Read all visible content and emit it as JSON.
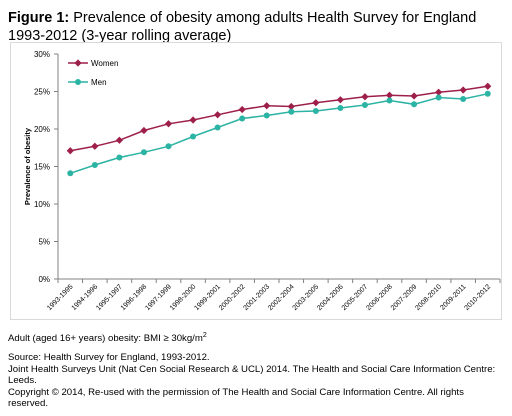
{
  "figure": {
    "label": "Figure 1:",
    "title": "Prevalence of obesity among adults Health Survey for England 1993-2012 (3-year rolling average)"
  },
  "chart_data": {
    "type": "line",
    "ylabel": "Prevalence of obesity",
    "ylim": [
      0,
      30
    ],
    "yticks": [
      "0%",
      "5%",
      "10%",
      "15%",
      "20%",
      "25%",
      "30%"
    ],
    "grid": false,
    "legend_position": "top-left",
    "categories": [
      "1993-1995",
      "1994-1996",
      "1995-1997",
      "1996-1998",
      "1997-1999",
      "1998-2000",
      "1999-2001",
      "2000-2002",
      "2001-2003",
      "2002-2004",
      "2003-2005",
      "2004-2006",
      "2005-2007",
      "2006-2008",
      "2007-2009",
      "2008-2010",
      "2009-2011",
      "2010-2012"
    ],
    "series": [
      {
        "name": "Women",
        "color": "#9e1f4a",
        "marker": "diamond",
        "values": [
          17.1,
          17.7,
          18.5,
          19.8,
          20.7,
          21.2,
          21.9,
          22.6,
          23.1,
          23.0,
          23.5,
          23.9,
          24.3,
          24.5,
          24.4,
          24.9,
          25.2,
          25.7
        ]
      },
      {
        "name": "Men",
        "color": "#2bb3a3",
        "marker": "circle",
        "values": [
          14.1,
          15.2,
          16.2,
          16.9,
          17.7,
          19.0,
          20.2,
          21.4,
          21.8,
          22.3,
          22.4,
          22.8,
          23.2,
          23.8,
          23.3,
          24.2,
          24.0,
          24.7
        ]
      }
    ]
  },
  "notes": {
    "obesity_def": "Adult (aged 16+ years) obesity: BMI ≥ 30kg/m",
    "obesity_sup": "2",
    "source": "Source: Health Survey for England, 1993-2012.",
    "joint": "Joint Health Surveys Unit (Nat Cen Social Research & UCL) 2014. The Health and Social Care Information Centre: Leeds.",
    "copyright": "Copyright © 2014, Re-used with the permission of The Health and Social Care Information Centre. All rights reserved."
  }
}
